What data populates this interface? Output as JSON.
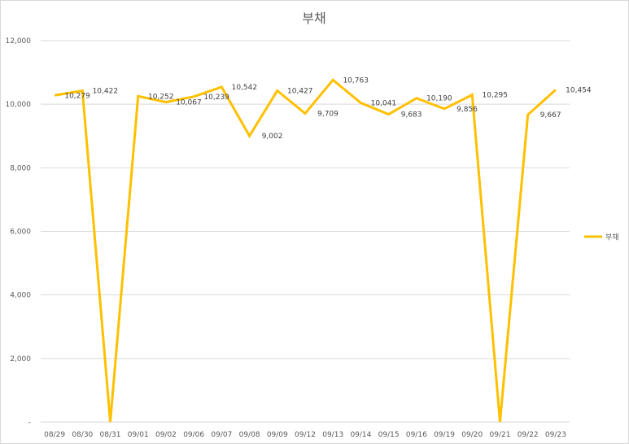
{
  "chart_data": {
    "type": "line",
    "title": "부채",
    "xlabel": "",
    "ylabel": "",
    "categories": [
      "08/29",
      "08/30",
      "08/31",
      "09/01",
      "09/02",
      "09/06",
      "09/07",
      "09/08",
      "09/09",
      "09/12",
      "09/13",
      "09/14",
      "09/15",
      "09/16",
      "09/19",
      "09/20",
      "09/21",
      "09/22",
      "09/23"
    ],
    "series": [
      {
        "name": "부채",
        "values": [
          10279,
          10422,
          0,
          10252,
          10067,
          10239,
          10542,
          9002,
          10427,
          9709,
          10763,
          10041,
          9683,
          10190,
          9856,
          10295,
          0,
          9667,
          10454
        ],
        "labels": [
          "10,279",
          "10,422",
          "",
          "10,252",
          "10,067",
          "10,239",
          "10,542",
          "9,002",
          "10,427",
          "9,709",
          "10,763",
          "10,041",
          "9,683",
          "10,190",
          "9,856",
          "10,295",
          "",
          "9,667",
          "10,454"
        ]
      }
    ],
    "ylim": [
      0,
      12000
    ],
    "yticks": [
      0,
      2000,
      4000,
      6000,
      8000,
      10000,
      12000
    ],
    "ytick_labels": [
      "-",
      "2,000",
      "4,000",
      "6,000",
      "8,000",
      "10,000",
      "12,000"
    ],
    "grid": true,
    "legend": "right",
    "colors": {
      "line": "#FFC000",
      "grid": "#d9d9d9"
    }
  }
}
